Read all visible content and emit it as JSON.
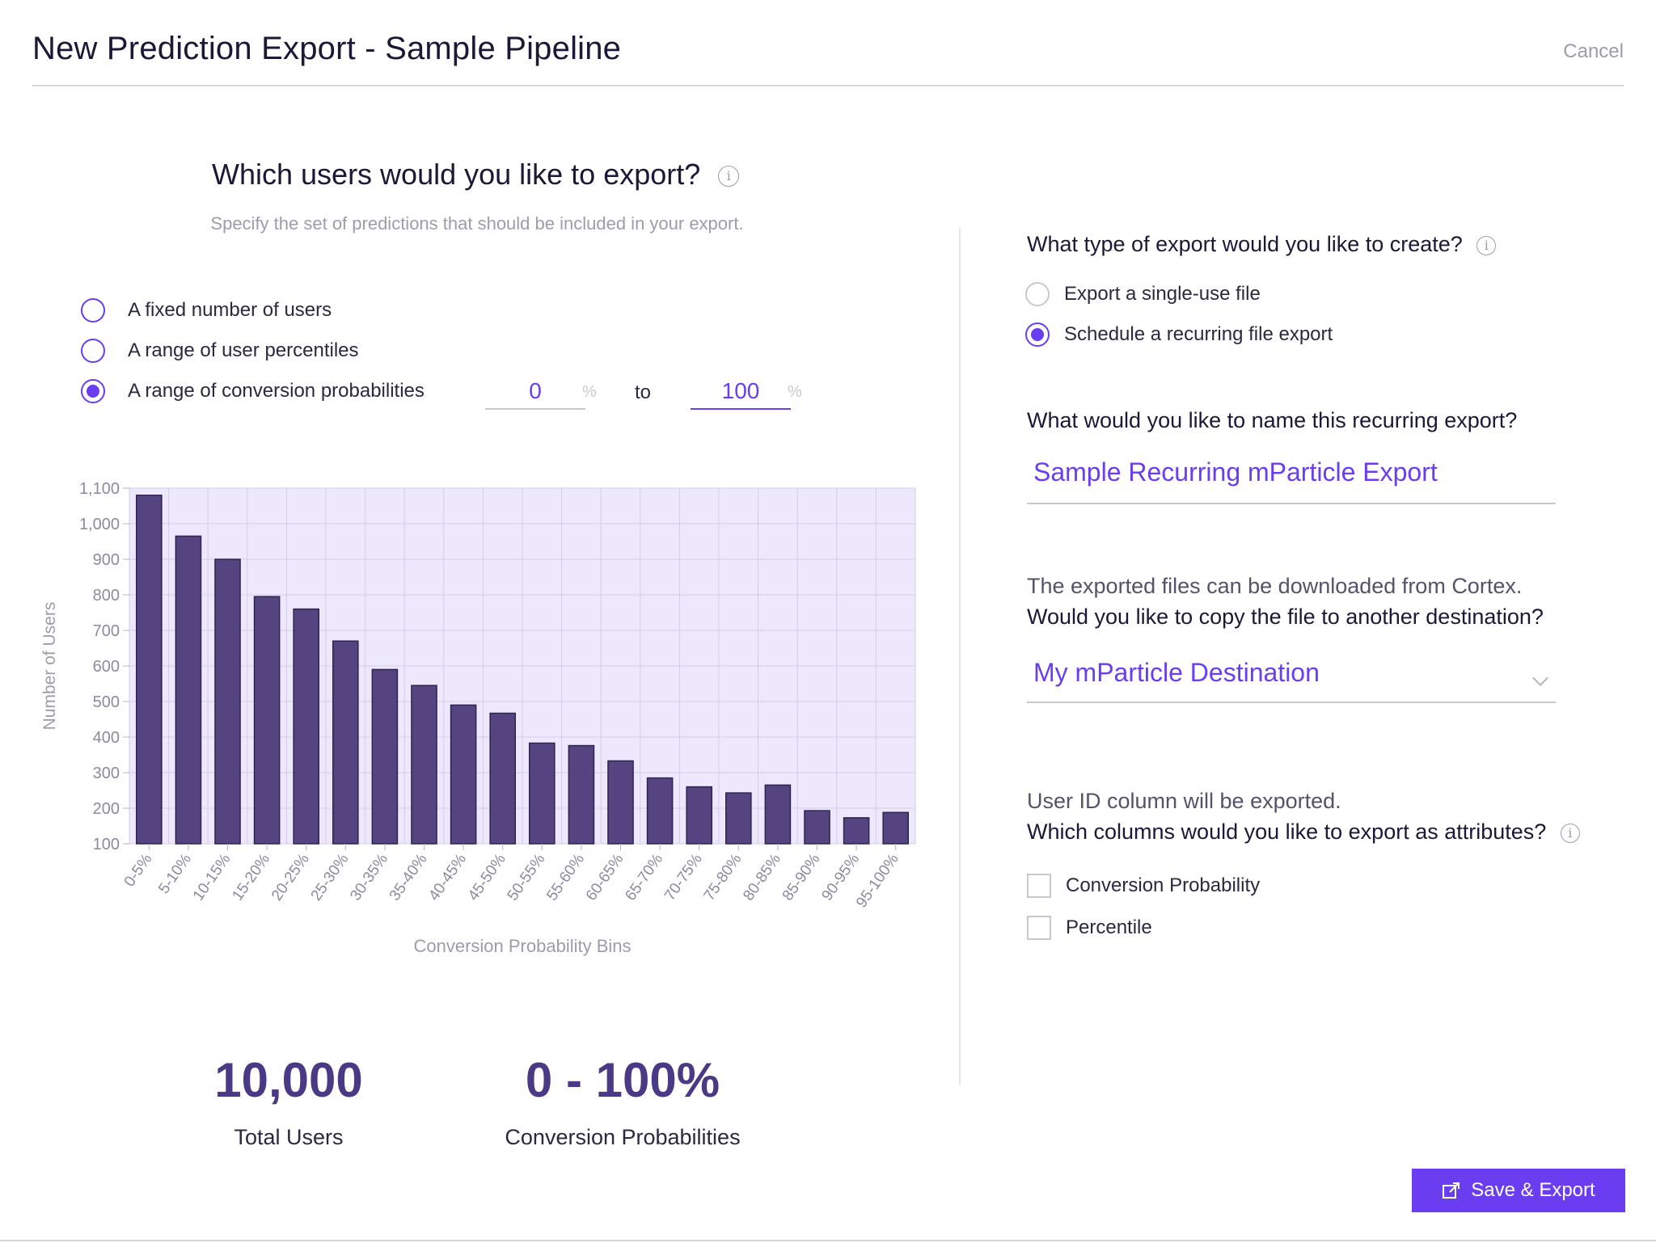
{
  "header": {
    "title": "New Prediction Export - Sample Pipeline",
    "cancel_label": "Cancel"
  },
  "left": {
    "title": "Which users would you like to export?",
    "subtitle": "Specify the set of predictions that should be included in your export.",
    "options": [
      {
        "label": "A fixed number of users",
        "selected": false
      },
      {
        "label": "A range of user percentiles",
        "selected": false
      },
      {
        "label": "A range of conversion probabilities",
        "selected": true
      }
    ],
    "range": {
      "from": "0",
      "to": "100",
      "unit": "%",
      "to_label": "to"
    }
  },
  "chart_data": {
    "type": "bar",
    "categories": [
      "0-5%",
      "5-10%",
      "10-15%",
      "15-20%",
      "20-25%",
      "25-30%",
      "30-35%",
      "35-40%",
      "40-45%",
      "45-50%",
      "50-55%",
      "55-60%",
      "60-65%",
      "65-70%",
      "70-75%",
      "75-80%",
      "80-85%",
      "85-90%",
      "90-95%",
      "95-100%"
    ],
    "values": [
      1080,
      965,
      900,
      795,
      760,
      670,
      590,
      545,
      490,
      467,
      383,
      376,
      333,
      285,
      260,
      243,
      265,
      193,
      173,
      188
    ],
    "xlabel": "Conversion Probability Bins",
    "ylabel": "Number of Users",
    "ylim": [
      100,
      1100
    ],
    "yticks": [
      100,
      200,
      300,
      400,
      500,
      600,
      700,
      800,
      900,
      1000,
      1100
    ],
    "ytick_labels": [
      "100",
      "200",
      "300",
      "400",
      "500",
      "600",
      "700",
      "800",
      "900",
      "1,000",
      "1,100"
    ],
    "grid": true,
    "colors": {
      "bar": "#564480",
      "bar_stroke": "#2e2452",
      "plot_bg": "#ede8fc",
      "grid": "#d3cde8"
    }
  },
  "stats": [
    {
      "value": "10,000",
      "label": "Total Users"
    },
    {
      "value": "0 - 100%",
      "label": "Conversion Probabilities"
    }
  ],
  "right": {
    "export_type": {
      "question": "What type of export would you like to create?",
      "options": [
        {
          "label": "Export a single-use file",
          "selected": false
        },
        {
          "label": "Schedule a recurring file export",
          "selected": true
        }
      ]
    },
    "name": {
      "question": "What would you like to name this recurring export?",
      "value": "Sample Recurring mParticle Export"
    },
    "destination": {
      "line1": "The exported files can be downloaded from Cortex.",
      "line2": "Would you like to copy the file to another destination?",
      "value": "My mParticle Destination"
    },
    "columns": {
      "line1": "User ID column will be exported.",
      "line2": "Which columns would you like to export as attributes?",
      "options": [
        {
          "label": "Conversion Probability",
          "checked": false
        },
        {
          "label": "Percentile",
          "checked": false
        }
      ]
    }
  },
  "actions": {
    "save_label": "Save & Export"
  },
  "colors": {
    "accent": "#6a3df0",
    "stat": "#4a3a85"
  }
}
